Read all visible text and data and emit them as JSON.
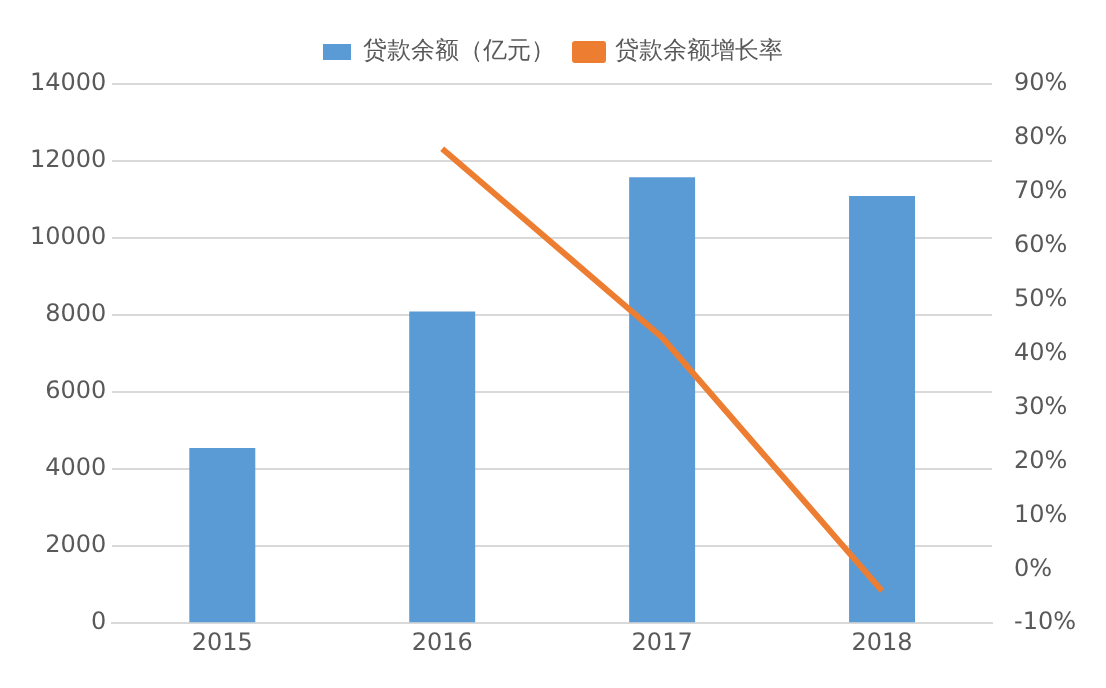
{
  "chart_data": {
    "type": "bar",
    "categories": [
      "2015",
      "2016",
      "2017",
      "2018"
    ],
    "series": [
      {
        "name": "贷款余额（亿元）",
        "color": "#5b9bd5",
        "values": [
          4550,
          8090,
          11580,
          11090
        ]
      },
      {
        "name": "贷款余额增长率",
        "type": "line",
        "axis": "y2",
        "color": "#ed7d31",
        "marker": "none",
        "values": [
          null,
          78,
          43,
          -4
        ]
      }
    ],
    "ylim": [
      0,
      14000
    ],
    "yticks": [
      0,
      2000,
      4000,
      6000,
      8000,
      10000,
      12000,
      14000
    ],
    "y2lim": [
      -10,
      90
    ],
    "y2ticks": [
      {
        "value": -10,
        "label": "-10%"
      },
      {
        "value": 0,
        "label": "0%"
      },
      {
        "value": 10,
        "label": "10%"
      },
      {
        "value": 20,
        "label": "20%"
      },
      {
        "value": 30,
        "label": "30%"
      },
      {
        "value": 40,
        "label": "40%"
      },
      {
        "value": 50,
        "label": "50%"
      },
      {
        "value": 60,
        "label": "60%"
      },
      {
        "value": 70,
        "label": "70%"
      },
      {
        "value": 80,
        "label": "80%"
      },
      {
        "value": 90,
        "label": "90%"
      }
    ],
    "grid": "y",
    "legend": "top"
  }
}
